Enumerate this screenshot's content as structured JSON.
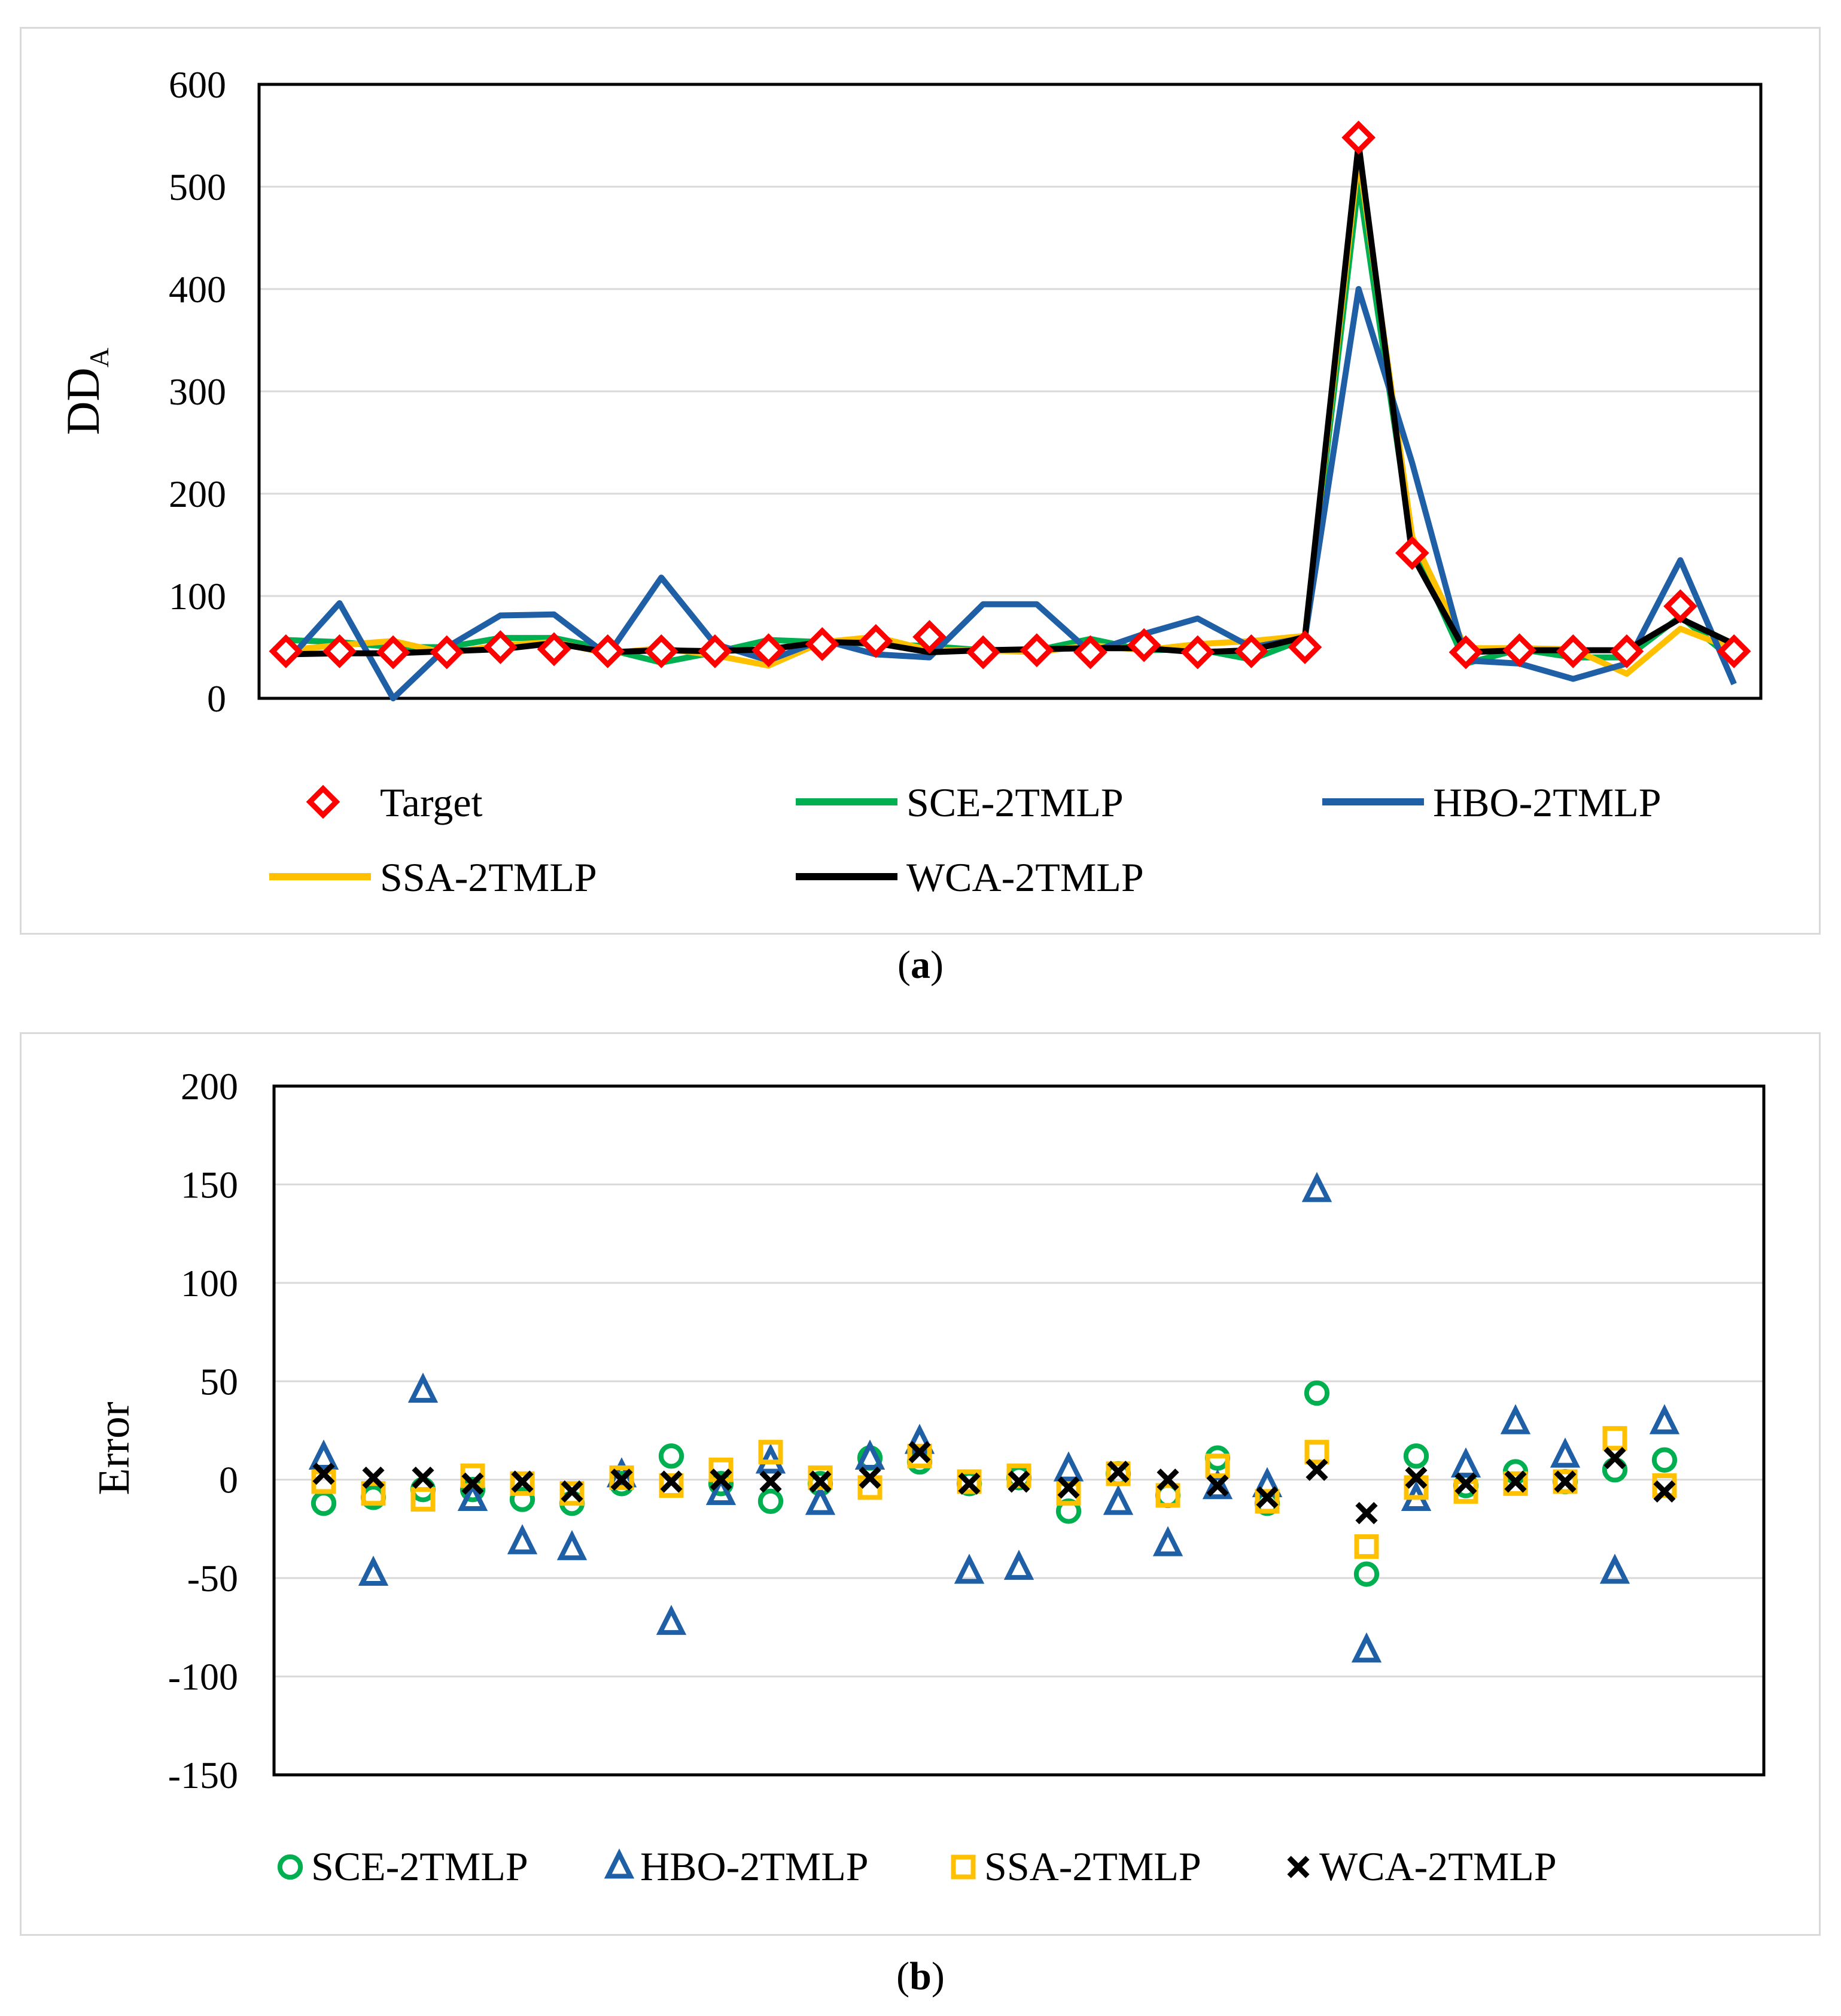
{
  "captions": {
    "a": "a",
    "b": "b"
  },
  "chart_data": [
    {
      "type": "line",
      "panel": "a",
      "ylabel": "DD",
      "ylabel_subscript": "A",
      "xlabel": "",
      "ylim": [
        0,
        600
      ],
      "yticks": [
        0,
        100,
        200,
        300,
        400,
        500,
        600
      ],
      "grid": true,
      "x": [
        1,
        2,
        3,
        4,
        5,
        6,
        7,
        8,
        9,
        10,
        11,
        12,
        13,
        14,
        15,
        16,
        17,
        18,
        19,
        20,
        21,
        22,
        23,
        24,
        25,
        26,
        27,
        28
      ],
      "series": [
        {
          "name": "Target",
          "kind": "marker",
          "marker": "diamond",
          "color": "#ff0000",
          "values": [
            46,
            46,
            45,
            45,
            50,
            48,
            46,
            46,
            46,
            47,
            53,
            56,
            60,
            45,
            47,
            45,
            52,
            45,
            46,
            50,
            548,
            142,
            45,
            47,
            46,
            46,
            90,
            46
          ]
        },
        {
          "name": "SCE-2TMLP",
          "kind": "line",
          "color": "#00b050",
          "values": [
            57,
            55,
            50,
            50,
            59,
            59,
            48,
            35,
            45,
            57,
            55,
            53,
            51,
            47,
            47,
            58,
            47,
            48,
            38,
            58,
            505,
            150,
            34,
            48,
            40,
            40,
            80,
            37
          ]
        },
        {
          "name": "HBO-2TMLP",
          "kind": "line",
          "color": "#1f5fa5",
          "values": [
            35,
            93,
            0,
            50,
            81,
            82,
            42,
            118,
            53,
            37,
            57,
            43,
            40,
            92,
            92,
            45,
            63,
            78,
            50,
            59,
            400,
            230,
            37,
            34,
            19,
            34,
            135,
            14
          ]
        },
        {
          "name": "SSA-2TMLP",
          "kind": "line",
          "color": "#ffc000",
          "values": [
            47,
            52,
            56,
            44,
            52,
            55,
            44,
            49,
            42,
            32,
            55,
            60,
            47,
            47,
            45,
            52,
            47,
            53,
            56,
            61,
            530,
            158,
            49,
            49,
            48,
            24,
            68,
            48
          ]
        },
        {
          "name": "WCA-2TMLP",
          "kind": "line",
          "color": "#000000",
          "values": [
            43,
            44,
            44,
            46,
            48,
            54,
            45,
            47,
            46,
            48,
            55,
            54,
            45,
            47,
            48,
            49,
            49,
            45,
            47,
            60,
            542,
            140,
            45,
            47,
            47,
            47,
            78,
            53
          ]
        }
      ]
    },
    {
      "type": "scatter",
      "panel": "b",
      "ylabel": "Error",
      "xlabel": "",
      "ylim": [
        -150,
        200
      ],
      "yticks": [
        -150,
        -100,
        -50,
        0,
        50,
        100,
        150,
        200
      ],
      "grid": true,
      "x": [
        1,
        2,
        3,
        4,
        5,
        6,
        7,
        8,
        9,
        10,
        11,
        12,
        13,
        14,
        15,
        16,
        17,
        18,
        19,
        20,
        21,
        22,
        23,
        24,
        25,
        26,
        27,
        28
      ],
      "series": [
        {
          "name": "SCE-2TMLP",
          "marker": "circle",
          "color": "#00b050",
          "values": [
            -12,
            -9,
            -5,
            -5,
            -10,
            -12,
            -2,
            12,
            -2,
            -11,
            -2,
            11,
            9,
            -2,
            1,
            -16,
            3,
            -8,
            11,
            -12,
            44,
            -48,
            12,
            -3,
            4,
            -1,
            5,
            10
          ]
        },
        {
          "name": "HBO-2TMLP",
          "marker": "triangle",
          "color": "#1f5fa5",
          "values": [
            11,
            -48,
            45,
            -10,
            -32,
            -35,
            2,
            -73,
            -7,
            9,
            -12,
            11,
            19,
            -47,
            -45,
            5,
            -12,
            -33,
            -4,
            -3,
            147,
            -87,
            -10,
            7,
            29,
            12,
            -47,
            29
          ]
        },
        {
          "name": "SSA-2TMLP",
          "marker": "square",
          "color": "#ffc000",
          "values": [
            -1,
            -7,
            -10,
            2,
            -2,
            -7,
            1,
            -3,
            5,
            14,
            1,
            -4,
            12,
            -1,
            2,
            -7,
            3,
            -8,
            7,
            -11,
            14,
            -34,
            -4,
            -6,
            -2,
            -1,
            21,
            -3
          ]
        },
        {
          "name": "WCA-2TMLP",
          "marker": "cross",
          "color": "#000000",
          "values": [
            3,
            1,
            1,
            -2,
            -1,
            -6,
            0,
            -1,
            0,
            -1,
            -1,
            1,
            14,
            -2,
            -1,
            -4,
            4,
            0,
            -3,
            -9,
            5,
            -17,
            1,
            -2,
            -1,
            -1,
            11,
            -6
          ]
        }
      ]
    }
  ]
}
